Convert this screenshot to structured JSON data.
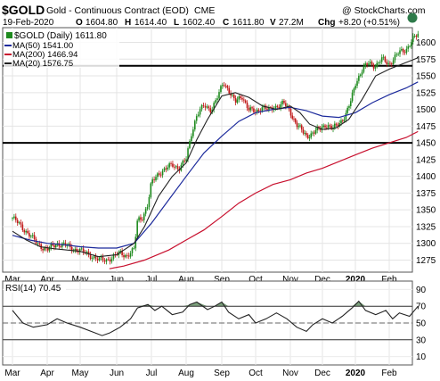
{
  "header": {
    "symbol": "$GOLD",
    "name": "Gold - Continuous Contract (EOD)",
    "exchange": "CME",
    "copyright": "@ StockCharts.com",
    "date": "19-Feb-2020",
    "open_label": "O",
    "open": "1604.80",
    "high_label": "H",
    "high": "1614.40",
    "low_label": "L",
    "low": "1602.40",
    "close_label": "C",
    "close": "1611.80",
    "volume_label": "V",
    "volume": "27.2M",
    "change_label": "Chg",
    "change": "+8.20 (+0.51%)"
  },
  "legend": {
    "price": "$GOLD (Daily) 1611.80",
    "ma50": "MA(50) 1541.00",
    "ma200": "MA(200) 1466.94",
    "ma20": "MA(20) 1576.75"
  },
  "colors": {
    "up": "#1e8a1e",
    "down": "#c01818",
    "ma50": "#1c2a9c",
    "ma200": "#c8102e",
    "ma20": "#222222",
    "rsi_line": "#222222",
    "rsi_fill": "#5b8a5b"
  },
  "chart_data": [
    {
      "type": "candlestick",
      "title": "$GOLD (Daily) 1611.80",
      "x_tick_labels": [
        "Mar",
        "Apr",
        "May",
        "Jun",
        "Jul",
        "Aug",
        "Sep",
        "Oct",
        "Nov",
        "Dec",
        "2020",
        "Feb"
      ],
      "y_tick_labels": [
        "1275",
        "1300",
        "1325",
        "1350",
        "1375",
        "1400",
        "1425",
        "1450",
        "1475",
        "1500",
        "1525",
        "1550",
        "1575",
        "1600"
      ],
      "ylim": [
        1257,
        1622
      ],
      "horizontal_lines": [
        1450,
        1565
      ],
      "series": [
        {
          "name": "$GOLD (Daily)",
          "close_path": [
            [
              0,
              1338
            ],
            [
              0.2,
              1328
            ],
            [
              0.45,
              1315
            ],
            [
              0.7,
              1300
            ],
            [
              1.0,
              1290
            ],
            [
              1.3,
              1300
            ],
            [
              1.6,
              1296
            ],
            [
              1.9,
              1290
            ],
            [
              2.2,
              1285
            ],
            [
              2.5,
              1275
            ],
            [
              2.7,
              1275
            ],
            [
              2.9,
              1280
            ],
            [
              3.1,
              1285
            ],
            [
              3.3,
              1282
            ],
            [
              3.5,
              1290
            ],
            [
              3.6,
              1335
            ],
            [
              3.75,
              1340
            ],
            [
              3.9,
              1358
            ],
            [
              4.0,
              1390
            ],
            [
              4.2,
              1405
            ],
            [
              4.4,
              1410
            ],
            [
              4.6,
              1418
            ],
            [
              4.8,
              1412
            ],
            [
              5.0,
              1425
            ],
            [
              5.15,
              1465
            ],
            [
              5.3,
              1492
            ],
            [
              5.5,
              1505
            ],
            [
              5.7,
              1500
            ],
            [
              5.9,
              1520
            ],
            [
              6.05,
              1540
            ],
            [
              6.2,
              1530
            ],
            [
              6.4,
              1510
            ],
            [
              6.6,
              1520
            ],
            [
              6.8,
              1500
            ],
            [
              7.0,
              1495
            ],
            [
              7.2,
              1505
            ],
            [
              7.4,
              1498
            ],
            [
              7.6,
              1505
            ],
            [
              7.8,
              1510
            ],
            [
              8.0,
              1495
            ],
            [
              8.2,
              1478
            ],
            [
              8.4,
              1465
            ],
            [
              8.5,
              1460
            ],
            [
              8.7,
              1465
            ],
            [
              8.9,
              1470
            ],
            [
              9.1,
              1478
            ],
            [
              9.3,
              1470
            ],
            [
              9.5,
              1480
            ],
            [
              9.7,
              1490
            ],
            [
              9.85,
              1510
            ],
            [
              10.0,
              1540
            ],
            [
              10.2,
              1558
            ],
            [
              10.4,
              1570
            ],
            [
              10.6,
              1565
            ],
            [
              10.8,
              1575
            ],
            [
              11.0,
              1568
            ],
            [
              11.3,
              1585
            ],
            [
              11.5,
              1590
            ],
            [
              11.7,
              1604
            ],
            [
              11.85,
              1612
            ]
          ]
        },
        {
          "name": "MA(50)",
          "value": 1541.0,
          "path": [
            [
              0,
              1312
            ],
            [
              0.5,
              1305
            ],
            [
              1.0,
              1300
            ],
            [
              1.5,
              1298
            ],
            [
              2.0,
              1295
            ],
            [
              2.5,
              1293
            ],
            [
              3.0,
              1293
            ],
            [
              3.5,
              1300
            ],
            [
              4.0,
              1330
            ],
            [
              4.5,
              1365
            ],
            [
              5.0,
              1400
            ],
            [
              5.5,
              1435
            ],
            [
              6.0,
              1460
            ],
            [
              6.5,
              1482
            ],
            [
              7.0,
              1495
            ],
            [
              7.5,
              1500
            ],
            [
              8.0,
              1503
            ],
            [
              8.5,
              1498
            ],
            [
              9.0,
              1490
            ],
            [
              9.5,
              1488
            ],
            [
              10.0,
              1495
            ],
            [
              10.5,
              1510
            ],
            [
              11.0,
              1522
            ],
            [
              11.5,
              1532
            ],
            [
              11.85,
              1541
            ]
          ]
        },
        {
          "name": "MA(200)",
          "value": 1466.94,
          "path": [
            [
              2.8,
              1262
            ],
            [
              3.2,
              1266
            ],
            [
              3.8,
              1275
            ],
            [
              4.5,
              1290
            ],
            [
              5.0,
              1305
            ],
            [
              5.5,
              1320
            ],
            [
              6.0,
              1340
            ],
            [
              6.5,
              1360
            ],
            [
              7.0,
              1375
            ],
            [
              7.5,
              1388
            ],
            [
              8.0,
              1395
            ],
            [
              8.5,
              1405
            ],
            [
              9.0,
              1412
            ],
            [
              9.5,
              1422
            ],
            [
              10.0,
              1432
            ],
            [
              10.5,
              1442
            ],
            [
              11.0,
              1450
            ],
            [
              11.5,
              1458
            ],
            [
              11.85,
              1467
            ]
          ]
        },
        {
          "name": "MA(20)",
          "value": 1576.75,
          "path": [
            [
              0,
              1318
            ],
            [
              0.4,
              1305
            ],
            [
              0.8,
              1295
            ],
            [
              1.2,
              1292
            ],
            [
              1.6,
              1290
            ],
            [
              2.0,
              1288
            ],
            [
              2.5,
              1280
            ],
            [
              3.0,
              1283
            ],
            [
              3.5,
              1300
            ],
            [
              3.8,
              1325
            ],
            [
              4.2,
              1370
            ],
            [
              4.6,
              1400
            ],
            [
              5.0,
              1420
            ],
            [
              5.3,
              1455
            ],
            [
              5.6,
              1485
            ],
            [
              6.0,
              1520
            ],
            [
              6.4,
              1525
            ],
            [
              6.8,
              1518
            ],
            [
              7.2,
              1505
            ],
            [
              7.6,
              1500
            ],
            [
              8.0,
              1505
            ],
            [
              8.3,
              1495
            ],
            [
              8.6,
              1478
            ],
            [
              9.0,
              1470
            ],
            [
              9.4,
              1472
            ],
            [
              9.8,
              1485
            ],
            [
              10.2,
              1515
            ],
            [
              10.6,
              1550
            ],
            [
              11.0,
              1560
            ],
            [
              11.4,
              1568
            ],
            [
              11.85,
              1577
            ]
          ]
        }
      ]
    },
    {
      "type": "line",
      "title": "RSI(14) 70.45",
      "x_tick_labels": [
        "Mar",
        "Apr",
        "May",
        "Jun",
        "Jul",
        "Aug",
        "Sep",
        "Oct",
        "Nov",
        "Dec",
        "2020",
        "Feb"
      ],
      "y_tick_labels": [
        "10",
        "30",
        "50",
        "70",
        "90"
      ],
      "ylim": [
        0,
        100
      ],
      "horizontal_lines": [
        30,
        50,
        70
      ],
      "series": [
        {
          "name": "RSI(14)",
          "value": 70.45,
          "path": [
            [
              0,
              65
            ],
            [
              0.3,
              50
            ],
            [
              0.6,
              45
            ],
            [
              1.0,
              48
            ],
            [
              1.3,
              55
            ],
            [
              1.6,
              50
            ],
            [
              2.0,
              45
            ],
            [
              2.3,
              40
            ],
            [
              2.6,
              35
            ],
            [
              2.8,
              38
            ],
            [
              3.1,
              45
            ],
            [
              3.4,
              55
            ],
            [
              3.6,
              68
            ],
            [
              3.9,
              72
            ],
            [
              4.1,
              65
            ],
            [
              4.3,
              70
            ],
            [
              4.6,
              60
            ],
            [
              4.9,
              63
            ],
            [
              5.1,
              72
            ],
            [
              5.3,
              75
            ],
            [
              5.6,
              66
            ],
            [
              5.8,
              70
            ],
            [
              6.0,
              75
            ],
            [
              6.2,
              63
            ],
            [
              6.5,
              55
            ],
            [
              6.8,
              60
            ],
            [
              7.0,
              50
            ],
            [
              7.3,
              55
            ],
            [
              7.6,
              62
            ],
            [
              7.9,
              55
            ],
            [
              8.2,
              45
            ],
            [
              8.5,
              40
            ],
            [
              8.7,
              48
            ],
            [
              9.0,
              55
            ],
            [
              9.3,
              50
            ],
            [
              9.6,
              58
            ],
            [
              9.9,
              68
            ],
            [
              10.1,
              76
            ],
            [
              10.3,
              65
            ],
            [
              10.6,
              60
            ],
            [
              10.9,
              65
            ],
            [
              11.1,
              55
            ],
            [
              11.3,
              62
            ],
            [
              11.6,
              58
            ],
            [
              11.85,
              70
            ]
          ]
        }
      ]
    }
  ]
}
